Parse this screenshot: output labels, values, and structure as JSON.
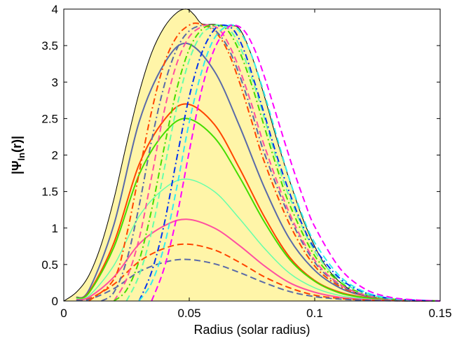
{
  "chart_data": {
    "type": "line",
    "xlabel": "Radius (solar radius)",
    "ylabel": "|Ψln(r)|",
    "ylabel_main": "|Ψ",
    "ylabel_sub": "ln",
    "ylabel_tail": "(r)|",
    "xlim": [
      0,
      0.15
    ],
    "ylim": [
      0,
      4
    ],
    "xticks": [
      0,
      0.05,
      0.1,
      0.15
    ],
    "xtick_labels": [
      "0",
      "0.05",
      "0.1",
      "0.15"
    ],
    "yticks": [
      0,
      0.5,
      1,
      1.5,
      2,
      2.5,
      3,
      3.5,
      4
    ],
    "ytick_labels": [
      "0",
      "0.5",
      "1",
      "1.5",
      "2",
      "2.5",
      "3",
      "3.5",
      "4"
    ],
    "grid": false,
    "legend": "none",
    "envelope": {
      "fill": "#fff5a8",
      "stroke": "#000000",
      "x": [
        0,
        0.005,
        0.01,
        0.015,
        0.02,
        0.025,
        0.03,
        0.035,
        0.04,
        0.045,
        0.049,
        0.052,
        0.055,
        0.06,
        0.065,
        0.07,
        0.075,
        0.08,
        0.085,
        0.09,
        0.095,
        0.1,
        0.105,
        0.11,
        0.115,
        0.12,
        0.125,
        0.13,
        0.135,
        0.14,
        0.145,
        0.15
      ],
      "y": [
        0,
        0.12,
        0.35,
        0.78,
        1.4,
        2.15,
        2.85,
        3.4,
        3.75,
        3.95,
        4.0,
        3.92,
        3.8,
        3.79,
        3.77,
        3.73,
        3.35,
        2.8,
        2.2,
        1.65,
        1.15,
        0.75,
        0.45,
        0.26,
        0.14,
        0.07,
        0.035,
        0.015,
        0.007,
        0.003,
        0.001,
        0
      ]
    },
    "series": [
      {
        "color": "#5a6aa8",
        "dash": "solid",
        "width": 2,
        "peak_x": 0.049,
        "peak_y": 3.53,
        "x": [
          0.005,
          0.01,
          0.02,
          0.03,
          0.04,
          0.049,
          0.06,
          0.07,
          0.08,
          0.09,
          0.1,
          0.11,
          0.12,
          0.13,
          0.14,
          0.15
        ],
        "y": [
          0.05,
          0.15,
          1.05,
          2.45,
          3.25,
          3.53,
          3.15,
          2.4,
          1.55,
          0.85,
          0.42,
          0.18,
          0.07,
          0.025,
          0.008,
          0
        ]
      },
      {
        "color": "#ff4500",
        "dash": "solid",
        "width": 2,
        "peak_x": 0.049,
        "peak_y": 2.7,
        "x": [
          0.005,
          0.01,
          0.02,
          0.03,
          0.04,
          0.049,
          0.06,
          0.07,
          0.08,
          0.09,
          0.1,
          0.11,
          0.12,
          0.13,
          0.14,
          0.15
        ],
        "y": [
          0.04,
          0.12,
          0.8,
          1.87,
          2.48,
          2.7,
          2.42,
          1.82,
          1.15,
          0.6,
          0.28,
          0.12,
          0.05,
          0.018,
          0.006,
          0
        ]
      },
      {
        "color": "#44dd00",
        "dash": "solid",
        "width": 2,
        "peak_x": 0.049,
        "peak_y": 2.5,
        "x": [
          0.005,
          0.01,
          0.02,
          0.03,
          0.04,
          0.049,
          0.06,
          0.07,
          0.08,
          0.09,
          0.1,
          0.11,
          0.12,
          0.13,
          0.14,
          0.15
        ],
        "y": [
          0.04,
          0.11,
          0.74,
          1.73,
          2.3,
          2.5,
          2.24,
          1.7,
          1.08,
          0.57,
          0.27,
          0.11,
          0.045,
          0.016,
          0.005,
          0
        ]
      },
      {
        "color": "#66ffaa",
        "dash": "solid",
        "width": 1.5,
        "peak_x": 0.049,
        "peak_y": 1.67,
        "x": [
          0.005,
          0.01,
          0.02,
          0.03,
          0.04,
          0.049,
          0.06,
          0.07,
          0.08,
          0.09,
          0.1,
          0.11,
          0.12,
          0.13,
          0.14,
          0.15
        ],
        "y": [
          0.03,
          0.07,
          0.49,
          1.16,
          1.54,
          1.67,
          1.5,
          1.13,
          0.72,
          0.38,
          0.18,
          0.075,
          0.03,
          0.01,
          0.003,
          0
        ]
      },
      {
        "color": "#ff4fa0",
        "dash": "solid",
        "width": 2,
        "peak_x": 0.049,
        "peak_y": 1.12,
        "x": [
          0.005,
          0.01,
          0.02,
          0.03,
          0.04,
          0.049,
          0.06,
          0.07,
          0.08,
          0.09,
          0.1,
          0.11,
          0.12,
          0.13,
          0.14,
          0.15
        ],
        "y": [
          0.02,
          0.05,
          0.33,
          0.78,
          1.03,
          1.12,
          1.0,
          0.76,
          0.48,
          0.25,
          0.12,
          0.05,
          0.02,
          0.007,
          0.002,
          0
        ]
      },
      {
        "color": "#ff4500",
        "dash": "dash",
        "width": 2,
        "peak_x": 0.049,
        "peak_y": 0.78,
        "x": [
          0.005,
          0.01,
          0.02,
          0.03,
          0.04,
          0.049,
          0.06,
          0.07,
          0.08,
          0.09,
          0.1,
          0.11,
          0.12,
          0.13,
          0.14,
          0.15
        ],
        "y": [
          0.01,
          0.03,
          0.23,
          0.54,
          0.72,
          0.78,
          0.7,
          0.53,
          0.33,
          0.18,
          0.08,
          0.035,
          0.014,
          0.005,
          0.0015,
          0
        ]
      },
      {
        "color": "#5a6aa8",
        "dash": "dash",
        "width": 2,
        "peak_x": 0.049,
        "peak_y": 0.57,
        "x": [
          0.005,
          0.01,
          0.02,
          0.03,
          0.04,
          0.049,
          0.06,
          0.07,
          0.08,
          0.09,
          0.1,
          0.11,
          0.12,
          0.13,
          0.14,
          0.15
        ],
        "y": [
          0.01,
          0.02,
          0.17,
          0.4,
          0.53,
          0.57,
          0.51,
          0.39,
          0.25,
          0.13,
          0.06,
          0.026,
          0.01,
          0.004,
          0.001,
          0
        ]
      },
      {
        "color": "#ff4500",
        "dash": "dashdot",
        "width": 2,
        "peak_x": 0.054,
        "peak_y": 3.8,
        "x": [
          0.01,
          0.02,
          0.025,
          0.03,
          0.035,
          0.04,
          0.045,
          0.05,
          0.054,
          0.06,
          0.065,
          0.07,
          0.075,
          0.08,
          0.09,
          0.1,
          0.11,
          0.12,
          0.13,
          0.14,
          0.15
        ],
        "y": [
          0.0,
          0.3,
          0.9,
          1.75,
          2.6,
          3.25,
          3.62,
          3.78,
          3.8,
          3.7,
          3.45,
          3.0,
          2.45,
          1.9,
          1.05,
          0.48,
          0.2,
          0.075,
          0.025,
          0.007,
          0
        ]
      },
      {
        "color": "#5a6aa8",
        "dash": "dashdot",
        "width": 2,
        "peak_x": 0.056,
        "peak_y": 3.78,
        "x": [
          0.015,
          0.02,
          0.025,
          0.03,
          0.035,
          0.04,
          0.045,
          0.05,
          0.056,
          0.06,
          0.065,
          0.07,
          0.075,
          0.08,
          0.09,
          0.1,
          0.11,
          0.12,
          0.13,
          0.14,
          0.15
        ],
        "y": [
          0.0,
          0.12,
          0.55,
          1.3,
          2.2,
          2.95,
          3.45,
          3.7,
          3.78,
          3.72,
          3.5,
          3.1,
          2.58,
          2.02,
          1.15,
          0.53,
          0.22,
          0.08,
          0.027,
          0.008,
          0
        ]
      },
      {
        "color": "#ff4fa0",
        "dash": "dash",
        "width": 2,
        "peak_x": 0.058,
        "peak_y": 3.78,
        "x": [
          0.02,
          0.025,
          0.03,
          0.035,
          0.04,
          0.045,
          0.05,
          0.055,
          0.058,
          0.062,
          0.066,
          0.07,
          0.075,
          0.08,
          0.09,
          0.1,
          0.11,
          0.12,
          0.13,
          0.14,
          0.15
        ],
        "y": [
          0.0,
          0.3,
          0.85,
          1.7,
          2.6,
          3.25,
          3.62,
          3.76,
          3.78,
          3.72,
          3.5,
          3.18,
          2.68,
          2.12,
          1.2,
          0.56,
          0.23,
          0.085,
          0.028,
          0.008,
          0
        ]
      },
      {
        "color": "#44dd00",
        "dash": "dashdot",
        "width": 2,
        "peak_x": 0.06,
        "peak_y": 3.78,
        "x": [
          0.02,
          0.025,
          0.03,
          0.035,
          0.04,
          0.045,
          0.05,
          0.055,
          0.06,
          0.065,
          0.07,
          0.075,
          0.08,
          0.085,
          0.09,
          0.1,
          0.11,
          0.12,
          0.13,
          0.14,
          0.15
        ],
        "y": [
          0.0,
          0.15,
          0.55,
          1.25,
          2.1,
          2.9,
          3.45,
          3.72,
          3.78,
          3.72,
          3.42,
          2.95,
          2.38,
          1.82,
          1.32,
          0.62,
          0.26,
          0.095,
          0.03,
          0.009,
          0
        ]
      },
      {
        "color": "#66ffaa",
        "dash": "dash",
        "width": 2,
        "peak_x": 0.062,
        "peak_y": 3.78,
        "x": [
          0.025,
          0.03,
          0.035,
          0.04,
          0.045,
          0.05,
          0.055,
          0.06,
          0.062,
          0.066,
          0.07,
          0.075,
          0.08,
          0.085,
          0.09,
          0.1,
          0.11,
          0.12,
          0.13,
          0.14,
          0.15
        ],
        "y": [
          0.0,
          0.35,
          0.95,
          1.8,
          2.65,
          3.3,
          3.66,
          3.77,
          3.78,
          3.72,
          3.5,
          3.05,
          2.5,
          1.92,
          1.42,
          0.68,
          0.29,
          0.105,
          0.034,
          0.01,
          0
        ]
      },
      {
        "color": "#0033ee",
        "dash": "dashdot",
        "width": 2,
        "peak_x": 0.064,
        "peak_y": 3.78,
        "x": [
          0.03,
          0.035,
          0.04,
          0.045,
          0.05,
          0.055,
          0.06,
          0.064,
          0.068,
          0.072,
          0.076,
          0.08,
          0.085,
          0.09,
          0.095,
          0.1,
          0.11,
          0.12,
          0.13,
          0.14,
          0.15
        ],
        "y": [
          0.0,
          0.4,
          1.05,
          1.95,
          2.8,
          3.4,
          3.72,
          3.78,
          3.7,
          3.42,
          3.0,
          2.55,
          1.98,
          1.48,
          1.05,
          0.72,
          0.31,
          0.115,
          0.037,
          0.011,
          0
        ]
      },
      {
        "color": "#33eeee",
        "dash": "dash",
        "width": 2,
        "peak_x": 0.066,
        "peak_y": 3.78,
        "x": [
          0.03,
          0.035,
          0.04,
          0.045,
          0.05,
          0.055,
          0.06,
          0.066,
          0.07,
          0.074,
          0.078,
          0.082,
          0.086,
          0.09,
          0.095,
          0.1,
          0.11,
          0.12,
          0.13,
          0.14,
          0.15
        ],
        "y": [
          0.0,
          0.25,
          0.75,
          1.55,
          2.45,
          3.15,
          3.6,
          3.78,
          3.7,
          3.44,
          3.05,
          2.6,
          2.12,
          1.66,
          1.18,
          0.8,
          0.34,
          0.125,
          0.04,
          0.012,
          0
        ]
      },
      {
        "color": "#ff00ff",
        "dash": "dash",
        "width": 2,
        "peak_x": 0.068,
        "peak_y": 3.78,
        "x": [
          0.035,
          0.04,
          0.045,
          0.05,
          0.055,
          0.06,
          0.065,
          0.068,
          0.072,
          0.076,
          0.08,
          0.084,
          0.088,
          0.092,
          0.096,
          0.1,
          0.11,
          0.12,
          0.13,
          0.14,
          0.15
        ],
        "y": [
          0.0,
          0.45,
          1.15,
          2.05,
          2.9,
          3.45,
          3.73,
          3.78,
          3.7,
          3.45,
          3.07,
          2.63,
          2.18,
          1.75,
          1.36,
          1.02,
          0.45,
          0.165,
          0.052,
          0.015,
          0
        ]
      }
    ]
  }
}
